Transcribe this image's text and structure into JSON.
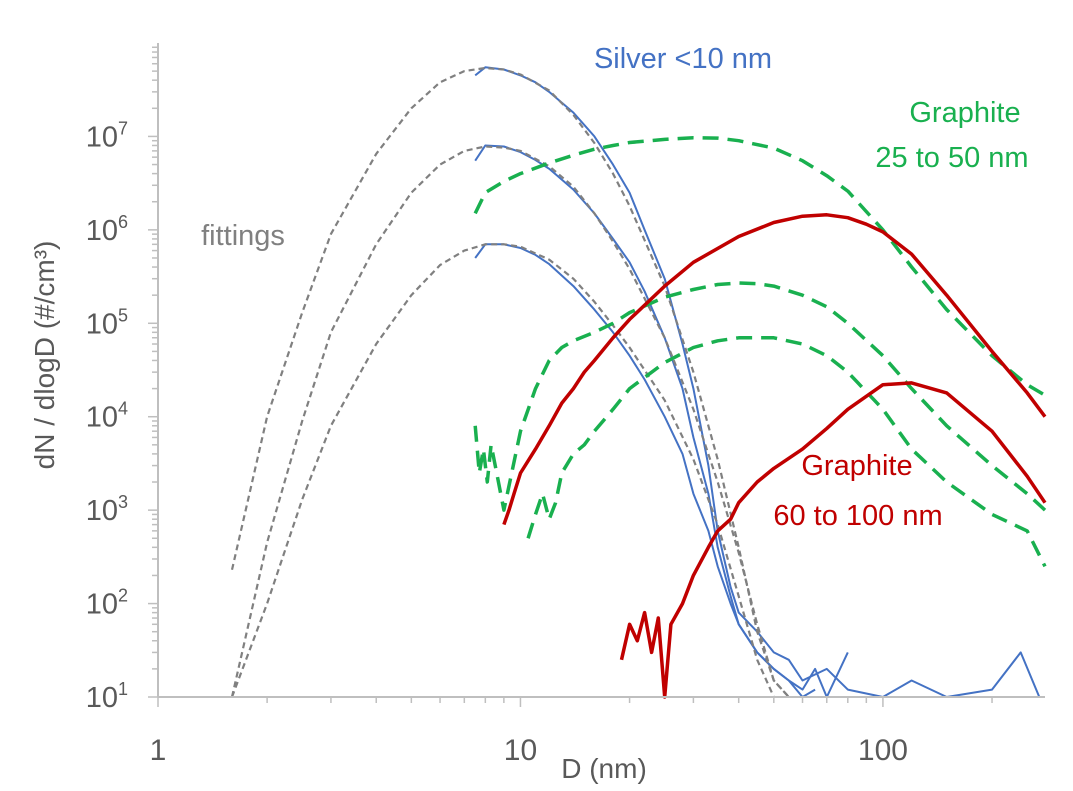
{
  "chart_data": {
    "type": "line",
    "xlabel": "D (nm)",
    "ylabel": "dN / dlogD (#/cm³)",
    "x_scale": "log",
    "y_scale": "log",
    "xlim": [
      1,
      280
    ],
    "ylim": [
      10,
      100000000
    ],
    "x_ticks": [
      {
        "value": 1,
        "label": "1"
      },
      {
        "value": 10,
        "label": "10"
      },
      {
        "value": 100,
        "label": "100"
      }
    ],
    "y_ticks": [
      {
        "value": 10,
        "base": "10",
        "exp": "1"
      },
      {
        "value": 100,
        "base": "10",
        "exp": "2"
      },
      {
        "value": 1000,
        "base": "10",
        "exp": "3"
      },
      {
        "value": 10000,
        "base": "10",
        "exp": "4"
      },
      {
        "value": 100000,
        "base": "10",
        "exp": "5"
      },
      {
        "value": 1000000,
        "base": "10",
        "exp": "6"
      },
      {
        "value": 10000000,
        "base": "10",
        "exp": "7"
      }
    ],
    "grid": false,
    "colors": {
      "silver": "#4472c4",
      "graphite_small": "#19b04f",
      "graphite_large": "#c00000",
      "fittings": "#808080",
      "axis": "#bfbfbf",
      "text": "#595959"
    },
    "annotations": [
      {
        "text": "Silver <10 nm",
        "color": "#4472c4"
      },
      {
        "text": "Graphite",
        "color": "#19b04f"
      },
      {
        "text": "25 to 50 nm",
        "color": "#19b04f"
      },
      {
        "text": "fittings",
        "color": "#808080"
      },
      {
        "text": "Graphite",
        "color": "#c00000"
      },
      {
        "text": "60 to 100 nm",
        "color": "#c00000"
      }
    ],
    "series": [
      {
        "group": "silver",
        "style": "solid",
        "x": [
          7.5,
          8,
          9,
          10,
          11,
          12,
          14,
          16,
          18,
          20,
          22,
          25,
          28,
          30,
          33,
          35,
          38,
          40,
          45,
          50,
          55,
          60,
          70,
          80,
          100,
          120,
          150,
          200,
          240,
          270
        ],
        "y": [
          45000000,
          55000000,
          52000000,
          45000000,
          38000000,
          30000000,
          18000000,
          10000000,
          5000000,
          2500000,
          1000000,
          300000,
          60000,
          20000,
          3000,
          600,
          150,
          80,
          50,
          30,
          25,
          15,
          20,
          12,
          10,
          15,
          10,
          12,
          30,
          10
        ]
      },
      {
        "group": "silver",
        "style": "solid",
        "x": [
          7.5,
          8,
          9,
          10,
          11,
          12,
          14,
          16,
          18,
          20,
          22,
          25,
          28,
          30,
          33,
          35,
          38,
          40,
          45,
          50,
          55,
          60,
          65,
          70,
          80
        ],
        "y": [
          5500000,
          8000000,
          7800000,
          6800000,
          5600000,
          4500000,
          2700000,
          1500000,
          800000,
          450000,
          220000,
          70000,
          20000,
          6000,
          1500,
          400,
          120,
          60,
          30,
          20,
          15,
          12,
          20,
          10,
          30
        ]
      },
      {
        "group": "silver",
        "style": "solid",
        "x": [
          7.5,
          8,
          9,
          10,
          11,
          12,
          14,
          16,
          18,
          20,
          22,
          25,
          28,
          30,
          33,
          35,
          38,
          40,
          45,
          50,
          55,
          60,
          65
        ],
        "y": [
          500000,
          700000,
          700000,
          640000,
          540000,
          430000,
          250000,
          140000,
          80000,
          45000,
          25000,
          10000,
          4000,
          1500,
          600,
          250,
          100,
          60,
          30,
          20,
          15,
          10,
          12
        ]
      },
      {
        "group": "fittings",
        "style": "dashed",
        "x": [
          1.6,
          2,
          2.5,
          3,
          4,
          5,
          6,
          7,
          8,
          9,
          10,
          12,
          14,
          16,
          18,
          20,
          25,
          30,
          35,
          40,
          45,
          50,
          55
        ],
        "y": [
          230,
          10000,
          130000,
          900000,
          6500000,
          20000000,
          38000000,
          50000000,
          54000000,
          52000000,
          46000000,
          31000000,
          17000000,
          8500000,
          4000000,
          1800000,
          250000,
          30000,
          3500,
          400,
          50,
          15,
          10
        ]
      },
      {
        "group": "fittings",
        "style": "dashed",
        "x": [
          1.6,
          2,
          2.5,
          3,
          4,
          5,
          6,
          7,
          8,
          9,
          10,
          12,
          14,
          16,
          18,
          20,
          25,
          30,
          35,
          40,
          45,
          50,
          55
        ],
        "y": [
          10,
          450,
          9000,
          80000,
          700000,
          2500000,
          5000000,
          7000000,
          7800000,
          7600000,
          7000000,
          4800000,
          2900000,
          1500000,
          750000,
          380000,
          70000,
          12000,
          2000,
          350,
          60,
          15,
          10
        ]
      },
      {
        "group": "fittings",
        "style": "dashed",
        "x": [
          1.6,
          2,
          2.5,
          3,
          4,
          5,
          6,
          7,
          8,
          9,
          10,
          12,
          14,
          16,
          18,
          20,
          25,
          30,
          35,
          40,
          45,
          50
        ],
        "y": [
          10,
          100,
          1300,
          8000,
          60000,
          200000,
          420000,
          600000,
          700000,
          700000,
          660000,
          480000,
          300000,
          170000,
          95000,
          55000,
          15000,
          3500,
          700,
          120,
          25,
          10
        ]
      },
      {
        "group": "graphite_small",
        "style": "dashed",
        "x": [
          7.5,
          8,
          9,
          10,
          12,
          14,
          16,
          18,
          20,
          25,
          30,
          35,
          40,
          50,
          60,
          70,
          80,
          100,
          120,
          150,
          200,
          250,
          280
        ],
        "y": [
          1500000,
          2500000,
          3300000,
          4000000,
          5200000,
          6300000,
          7300000,
          8000000,
          8600000,
          9300000,
          9700000,
          9600000,
          9000000,
          7500000,
          5500000,
          3800000,
          2600000,
          1000000,
          400000,
          140000,
          45000,
          22000,
          17000
        ]
      },
      {
        "group": "graphite_small",
        "style": "dashed",
        "x": [
          7.5,
          7.7,
          7.9,
          8.1,
          8.3,
          8.6,
          9,
          10,
          11,
          12,
          13,
          14,
          16,
          18,
          20,
          25,
          30,
          35,
          40,
          45,
          50,
          60,
          70,
          80,
          100,
          120,
          150,
          200,
          250,
          280
        ],
        "y": [
          8000,
          2500,
          4500,
          2000,
          5000,
          2500,
          1000,
          7000,
          20000,
          40000,
          55000,
          65000,
          80000,
          100000,
          130000,
          190000,
          230000,
          260000,
          270000,
          265000,
          250000,
          200000,
          150000,
          100000,
          45000,
          20000,
          8000,
          3000,
          1500,
          1000
        ]
      },
      {
        "group": "graphite_small",
        "style": "dashed",
        "x": [
          10.5,
          11,
          11.5,
          12,
          12.5,
          13,
          14,
          15,
          16,
          18,
          20,
          25,
          30,
          35,
          40,
          50,
          60,
          70,
          80,
          100,
          120,
          150,
          200,
          250,
          280
        ],
        "y": [
          500,
          900,
          1500,
          800,
          1200,
          2500,
          4000,
          5000,
          7000,
          12000,
          20000,
          38000,
          55000,
          65000,
          70000,
          70000,
          60000,
          45000,
          30000,
          12000,
          4500,
          2000,
          900,
          600,
          250
        ]
      },
      {
        "group": "graphite_large",
        "style": "solid",
        "x": [
          9,
          9.3,
          9.6,
          10,
          11,
          12,
          13,
          14,
          15,
          16,
          18,
          20,
          25,
          30,
          40,
          50,
          60,
          70,
          80,
          90,
          100,
          120,
          150,
          200,
          250,
          280
        ],
        "y": [
          700,
          1000,
          1500,
          2500,
          4500,
          8000,
          14000,
          20000,
          30000,
          40000,
          70000,
          110000,
          250000,
          450000,
          850000,
          1200000,
          1400000,
          1450000,
          1350000,
          1150000,
          950000,
          550000,
          200000,
          50000,
          18000,
          10000
        ]
      },
      {
        "group": "graphite_large",
        "style": "solid",
        "x": [
          19,
          20,
          21,
          22,
          23,
          24,
          25,
          26,
          28,
          30,
          33,
          35,
          38,
          40,
          45,
          50,
          60,
          70,
          80,
          100,
          120,
          150,
          200,
          250,
          280
        ],
        "y": [
          25,
          60,
          40,
          80,
          30,
          70,
          10,
          60,
          100,
          200,
          400,
          600,
          800,
          1200,
          2000,
          2800,
          4500,
          7500,
          12000,
          22000,
          23000,
          18000,
          7000,
          2300,
          1200
        ]
      }
    ]
  }
}
